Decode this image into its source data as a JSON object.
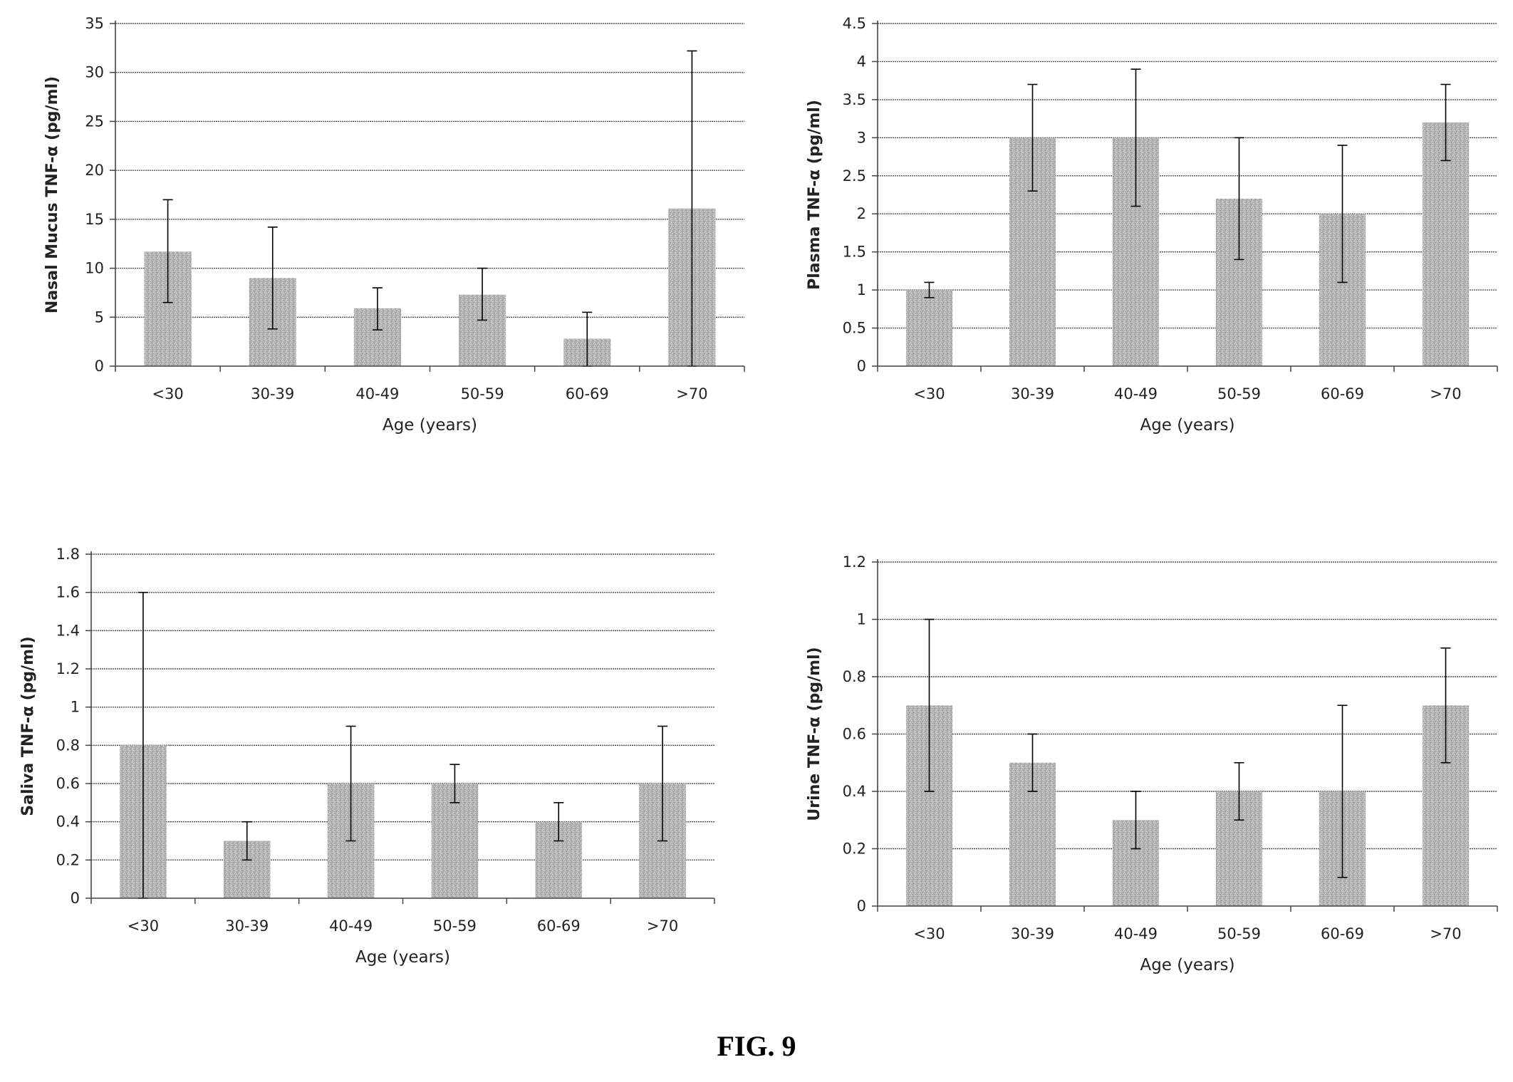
{
  "figure_label": "FIG. 9",
  "colors": {
    "bar": "#b3b3b3",
    "grid": "#555555",
    "axis": "#444444",
    "error": "#000000"
  },
  "chart_data": [
    {
      "type": "bar",
      "categories": [
        "<30",
        "30-39",
        "40-49",
        "50-59",
        "60-69",
        ">70"
      ],
      "values": [
        11.7,
        9.0,
        5.9,
        7.3,
        2.8,
        16.1
      ],
      "error_low": [
        6.5,
        3.8,
        3.7,
        4.7,
        0.0,
        0.0
      ],
      "error_high": [
        17.0,
        14.2,
        8.0,
        10.0,
        5.5,
        32.2
      ],
      "ylabel": "Nasal Mucus TNF-α (pg/ml)",
      "xlabel": "Age (years)",
      "ylim": [
        0,
        35
      ],
      "yticks": [
        "0",
        "5",
        "10",
        "15",
        "20",
        "25",
        "30",
        "35"
      ],
      "grid": true
    },
    {
      "type": "bar",
      "categories": [
        "<30",
        "30-39",
        "40-49",
        "50-59",
        "60-69",
        ">70"
      ],
      "values": [
        1.0,
        3.0,
        3.0,
        2.2,
        2.0,
        3.2
      ],
      "error_low": [
        0.9,
        2.3,
        2.1,
        1.4,
        1.1,
        2.7
      ],
      "error_high": [
        1.1,
        3.7,
        3.9,
        3.0,
        2.9,
        3.7
      ],
      "ylabel": "Plasma TNF-α (pg/ml)",
      "xlabel": "Age (years)",
      "ylim": [
        0,
        4.5
      ],
      "yticks": [
        "0",
        "0.5",
        "1",
        "1.5",
        "2",
        "2.5",
        "3",
        "3.5",
        "4",
        "4.5"
      ],
      "grid": true
    },
    {
      "type": "bar",
      "categories": [
        "<30",
        "30-39",
        "40-49",
        "50-59",
        "60-69",
        ">70"
      ],
      "values": [
        0.8,
        0.3,
        0.6,
        0.6,
        0.4,
        0.6
      ],
      "error_low": [
        0.0,
        0.2,
        0.3,
        0.5,
        0.3,
        0.3
      ],
      "error_high": [
        1.6,
        0.4,
        0.9,
        0.7,
        0.5,
        0.9
      ],
      "ylabel": "Saliva TNF-α (pg/ml)",
      "xlabel": "Age (years)",
      "ylim": [
        0,
        1.8
      ],
      "yticks": [
        "0",
        "0.2",
        "0.4",
        "0.6",
        "0.8",
        "1",
        "1.2",
        "1.4",
        "1.6",
        "1.8"
      ],
      "grid": true
    },
    {
      "type": "bar",
      "categories": [
        "<30",
        "30-39",
        "40-49",
        "50-59",
        "60-69",
        ">70"
      ],
      "values": [
        0.7,
        0.5,
        0.3,
        0.4,
        0.4,
        0.7
      ],
      "error_low": [
        0.4,
        0.4,
        0.2,
        0.3,
        0.1,
        0.5
      ],
      "error_high": [
        1.0,
        0.6,
        0.4,
        0.5,
        0.7,
        0.9
      ],
      "ylabel": "Urine TNF-α (pg/ml)",
      "xlabel": "Age (years)",
      "ylim": [
        0,
        1.2
      ],
      "yticks": [
        "0",
        "0.2",
        "0.4",
        "0.6",
        "0.8",
        "1",
        "1.2"
      ],
      "grid": true
    }
  ]
}
